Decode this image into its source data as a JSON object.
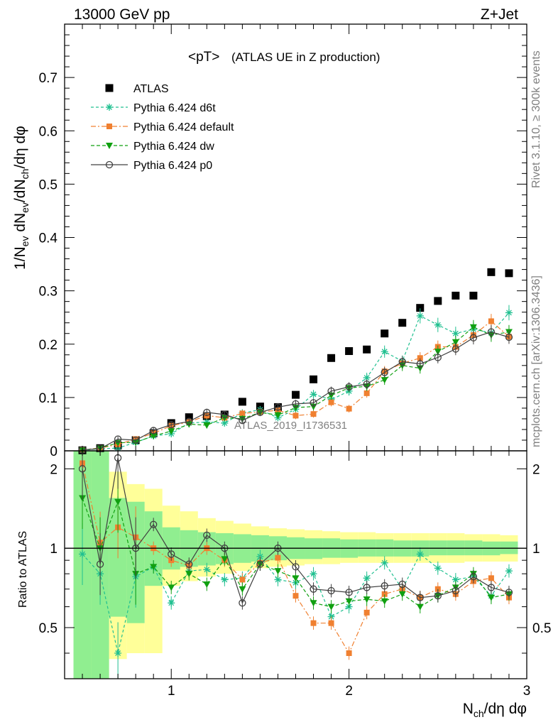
{
  "header": {
    "left": "13000 GeV pp",
    "right": "Z+Jet"
  },
  "side_text": {
    "rivet": "Rivet 3.1.10, ≥ 300k events",
    "mcplots": "mcplots.cern.ch [arXiv:1306.3436]"
  },
  "chart_data": [
    {
      "type": "scatter",
      "title_main": "<pT>",
      "title_sub": "(ATLAS UE in Z production)",
      "ylabel_parts": [
        "1/N",
        "ev",
        " dN",
        "ev",
        "/dN",
        "ch",
        "/dη dφ"
      ],
      "xlim": [
        0.4,
        3.0
      ],
      "ylim": [
        0,
        0.8
      ],
      "yticks": [
        0,
        0.1,
        0.2,
        0.3,
        0.4,
        0.5,
        0.6,
        0.7
      ],
      "ytick_labels": [
        "0",
        "0.1",
        "0.2",
        "0.3",
        "0.4",
        "0.5",
        "0.6",
        "0.7"
      ],
      "watermark": "ATLAS_2019_I1736531",
      "x": [
        0.5,
        0.6,
        0.7,
        0.8,
        0.9,
        1.0,
        1.1,
        1.2,
        1.3,
        1.4,
        1.5,
        1.6,
        1.7,
        1.8,
        1.9,
        2.0,
        2.1,
        2.2,
        2.3,
        2.4,
        2.5,
        2.6,
        2.7,
        2.8,
        2.9
      ],
      "series": [
        {
          "name": "ATLAS",
          "color": "#000000",
          "marker": "square",
          "line": "none",
          "values": [
            0.001,
            0.005,
            0.01,
            0.02,
            0.033,
            0.052,
            0.063,
            0.065,
            0.068,
            0.092,
            0.083,
            0.082,
            0.105,
            0.134,
            0.174,
            0.187,
            0.19,
            0.22,
            0.24,
            0.268,
            0.281,
            0.291,
            0.291,
            0.335,
            0.333
          ]
        },
        {
          "name": "Pythia 6.424 d6t",
          "color": "#20c090",
          "marker": "star",
          "line": "4,3",
          "values": [
            0.001,
            0.004,
            0.005,
            0.016,
            0.028,
            0.032,
            0.052,
            0.054,
            0.052,
            0.071,
            0.077,
            0.062,
            0.078,
            0.106,
            0.096,
            0.112,
            0.137,
            0.186,
            0.168,
            0.253,
            0.236,
            0.22,
            0.228,
            0.221,
            0.259
          ]
        },
        {
          "name": "Pythia 6.424 default",
          "color": "#f08030",
          "marker": "square",
          "line": "7,3,2,3",
          "values": [
            0.002,
            0.005,
            0.012,
            0.022,
            0.033,
            0.047,
            0.054,
            0.066,
            0.062,
            0.07,
            0.073,
            0.076,
            0.066,
            0.069,
            0.091,
            0.079,
            0.108,
            0.149,
            0.164,
            0.174,
            0.195,
            0.195,
            0.217,
            0.243,
            0.214
          ]
        },
        {
          "name": "Pythia 6.424 dw",
          "color": "#10a010",
          "marker": "triangle",
          "line": "5,3",
          "values": [
            0.001,
            0.005,
            0.015,
            0.016,
            0.028,
            0.037,
            0.05,
            0.048,
            0.062,
            0.06,
            0.072,
            0.067,
            0.081,
            0.083,
            0.104,
            0.118,
            0.121,
            0.133,
            0.16,
            0.155,
            0.186,
            0.204,
            0.232,
            0.217,
            0.223
          ]
        },
        {
          "name": "Pythia 6.424 p0",
          "color": "#404040",
          "marker": "circle",
          "line": "none-solid",
          "values": [
            0.002,
            0.004,
            0.022,
            0.02,
            0.038,
            0.049,
            0.055,
            0.072,
            0.068,
            0.057,
            0.072,
            0.082,
            0.088,
            0.09,
            0.112,
            0.12,
            0.125,
            0.147,
            0.167,
            0.163,
            0.175,
            0.191,
            0.212,
            0.223,
            0.213
          ]
        }
      ]
    },
    {
      "type": "scatter",
      "ylabel": "Ratio to ATLAS",
      "xlabel_parts": [
        "N",
        "ch",
        "/dη dφ"
      ],
      "xlim": [
        0.4,
        3.0
      ],
      "ylim": [
        0.32,
        2.34
      ],
      "yticks": [
        0.5,
        1,
        2
      ],
      "ytick_labels": [
        "0.5",
        "1",
        "2"
      ],
      "xticks": [
        1,
        2,
        3
      ],
      "xtick_labels": [
        "1",
        "2",
        "3"
      ],
      "bands": {
        "x_edges": [
          0.45,
          0.55,
          0.65,
          0.75,
          0.85,
          0.95,
          1.05,
          1.15,
          1.25,
          1.35,
          1.45,
          1.55,
          1.65,
          1.75,
          1.85,
          1.95,
          2.05,
          2.15,
          2.25,
          2.35,
          2.45,
          2.55,
          2.65,
          2.75,
          2.85,
          2.95
        ],
        "yellow_color": "#ffff99",
        "green_color": "#90ee90",
        "yellow_lo": [
          0.3,
          0.3,
          0.38,
          0.4,
          0.4,
          0.72,
          0.75,
          0.78,
          0.8,
          0.82,
          0.84,
          0.85,
          0.86,
          0.87,
          0.87,
          0.88,
          0.88,
          0.88,
          0.88,
          0.88,
          0.88,
          0.88,
          0.89,
          0.89,
          0.89
        ],
        "yellow_hi": [
          2.35,
          2.35,
          1.95,
          1.75,
          1.68,
          1.45,
          1.38,
          1.3,
          1.27,
          1.24,
          1.21,
          1.19,
          1.18,
          1.17,
          1.16,
          1.15,
          1.15,
          1.14,
          1.14,
          1.14,
          1.14,
          1.14,
          1.13,
          1.13,
          1.12
        ],
        "green_lo": [
          0.3,
          0.3,
          0.55,
          0.52,
          0.72,
          0.83,
          0.85,
          0.86,
          0.87,
          0.88,
          0.89,
          0.9,
          0.91,
          0.91,
          0.92,
          0.92,
          0.93,
          0.93,
          0.93,
          0.93,
          0.94,
          0.94,
          0.94,
          0.94,
          0.95
        ],
        "green_hi": [
          2.35,
          2.35,
          1.55,
          1.5,
          1.38,
          1.2,
          1.17,
          1.15,
          1.14,
          1.13,
          1.12,
          1.11,
          1.1,
          1.09,
          1.09,
          1.08,
          1.08,
          1.08,
          1.07,
          1.07,
          1.07,
          1.07,
          1.07,
          1.06,
          1.06
        ]
      },
      "series": [
        {
          "name": "Pythia 6.424 d6t",
          "values": [
            0.95,
            0.8,
            0.4,
            0.78,
            0.85,
            0.62,
            0.82,
            0.83,
            0.76,
            0.77,
            0.93,
            0.76,
            0.74,
            0.8,
            0.55,
            0.6,
            0.77,
            0.88,
            0.7,
            0.95,
            0.84,
            0.76,
            0.78,
            0.66,
            0.82
          ]
        },
        {
          "name": "Pythia 6.424 default",
          "values": [
            2.1,
            1.05,
            1.2,
            1.1,
            1.0,
            0.9,
            0.86,
            1.0,
            0.9,
            0.76,
            0.88,
            0.92,
            0.66,
            0.52,
            0.52,
            0.4,
            0.57,
            0.67,
            0.7,
            0.65,
            0.7,
            0.67,
            0.75,
            0.77,
            0.65
          ]
        },
        {
          "name": "Pythia 6.424 dw",
          "values": [
            1.55,
            1.0,
            1.5,
            0.8,
            0.85,
            0.71,
            0.8,
            0.73,
            0.91,
            0.7,
            0.87,
            0.82,
            0.77,
            0.62,
            0.6,
            0.63,
            0.64,
            0.63,
            0.67,
            0.6,
            0.66,
            0.71,
            0.8,
            0.65,
            0.67
          ]
        },
        {
          "name": "Pythia 6.424 p0",
          "values": [
            2.0,
            0.87,
            2.2,
            1.0,
            1.23,
            0.95,
            0.87,
            1.12,
            1.0,
            0.62,
            0.87,
            1.0,
            0.85,
            0.7,
            0.69,
            0.68,
            0.71,
            0.72,
            0.73,
            0.65,
            0.66,
            0.69,
            0.78,
            0.71,
            0.68
          ]
        }
      ]
    }
  ]
}
